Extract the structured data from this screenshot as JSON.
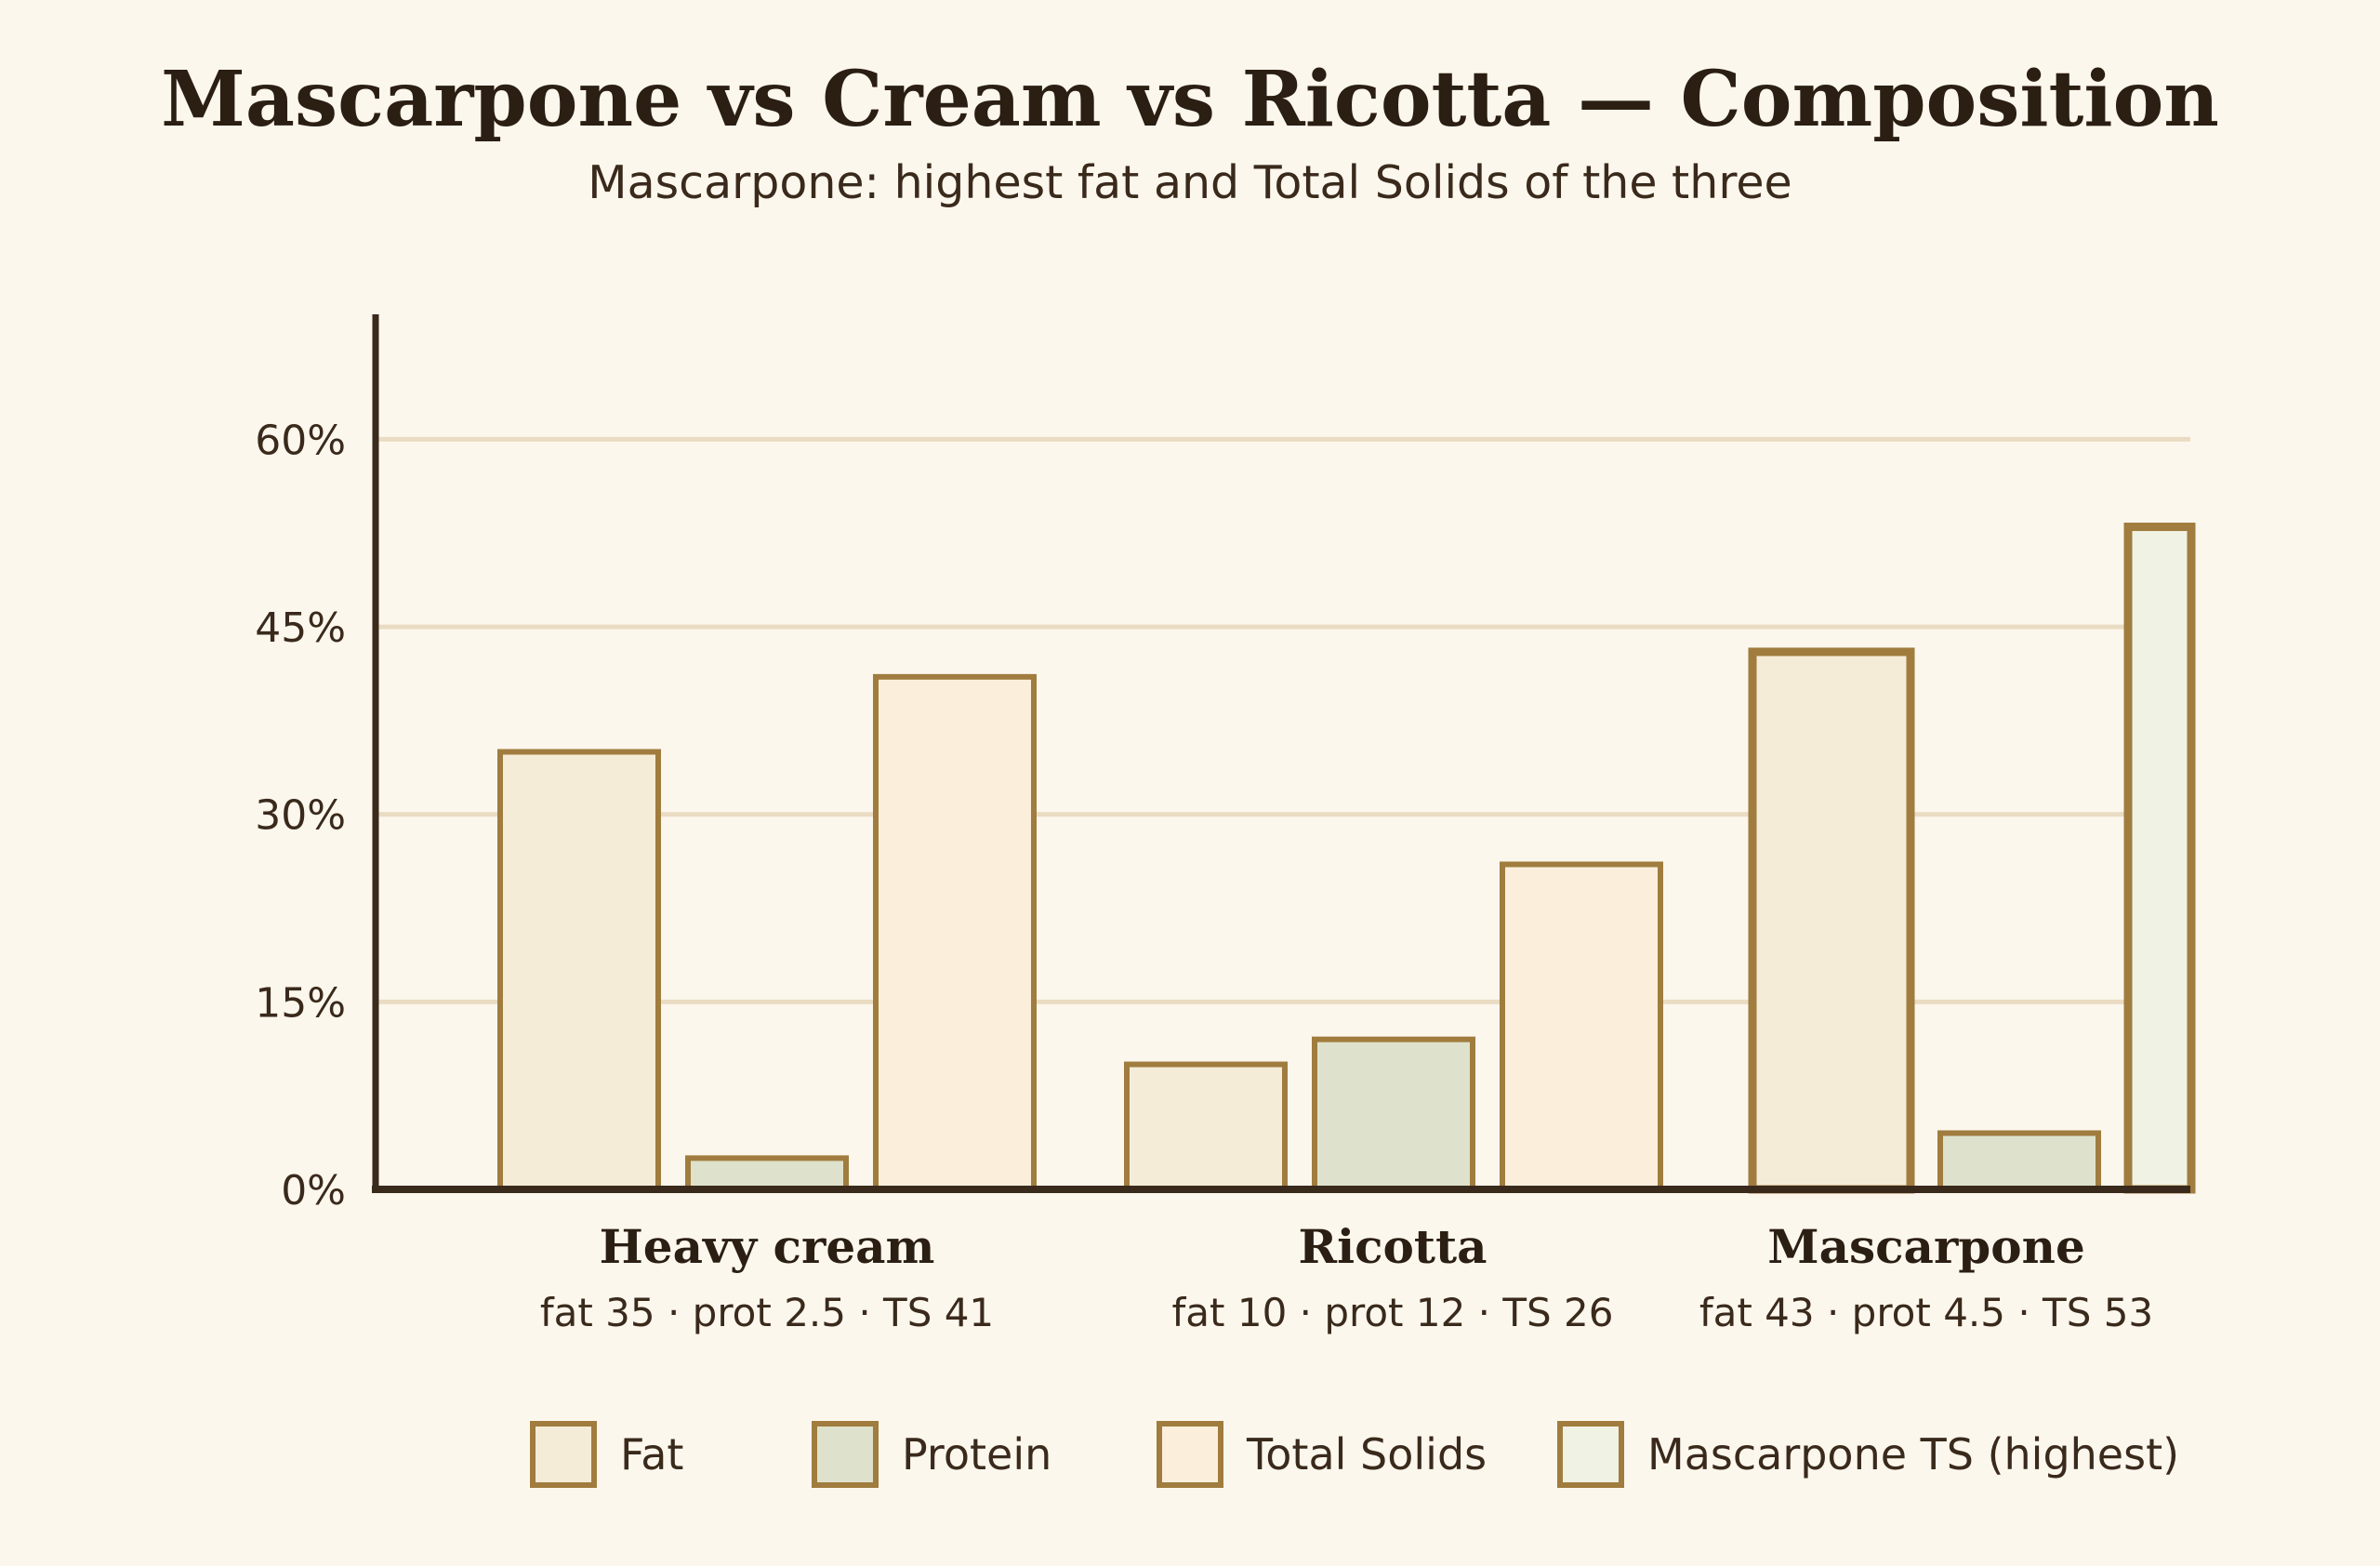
{
  "colors": {
    "background": "#fcf7ed",
    "axis": "#3a2a1c",
    "grid": "#eadcc3",
    "bar_stroke": "#a07c3e",
    "fat_fill": "#f5ecd8",
    "protein_fill": "#dee2cc",
    "total_solids_fill": "#fbefdc",
    "mascarpone_ts_fill": "#f0f2e4",
    "title": "#2b1e12",
    "highlight_label": "#4a5e22"
  },
  "chart_data": {
    "type": "bar",
    "title": "Mascarpone vs Cream vs Ricotta — Composition",
    "subtitle": "Mascarpone: highest fat and Total Solids of the three",
    "xlabel": "",
    "ylabel": "",
    "ylim": [
      0,
      70
    ],
    "yticks": [
      0,
      15,
      30,
      45,
      60
    ],
    "ytick_labels": [
      "0%",
      "15%",
      "30%",
      "45%",
      "60%"
    ],
    "grid": true,
    "legend_position": "bottom",
    "categories": [
      "Heavy cream",
      "Ricotta",
      "Mascarpone"
    ],
    "category_sublabels": [
      "fat 35 · prot 2.5 · TS 41",
      "fat 10 · prot 12 · TS 26",
      "fat 43 · prot 4.5 · TS 53"
    ],
    "highlight_category": "Mascarpone",
    "series": [
      {
        "name": "Fat",
        "values": [
          35,
          10,
          43
        ]
      },
      {
        "name": "Protein",
        "values": [
          2.5,
          12,
          4.5
        ]
      },
      {
        "name": "Total Solids",
        "values": [
          41,
          26,
          53
        ]
      }
    ],
    "legend": [
      "Fat",
      "Protein",
      "Total Solids",
      "Mascarpone TS (highest)"
    ]
  }
}
